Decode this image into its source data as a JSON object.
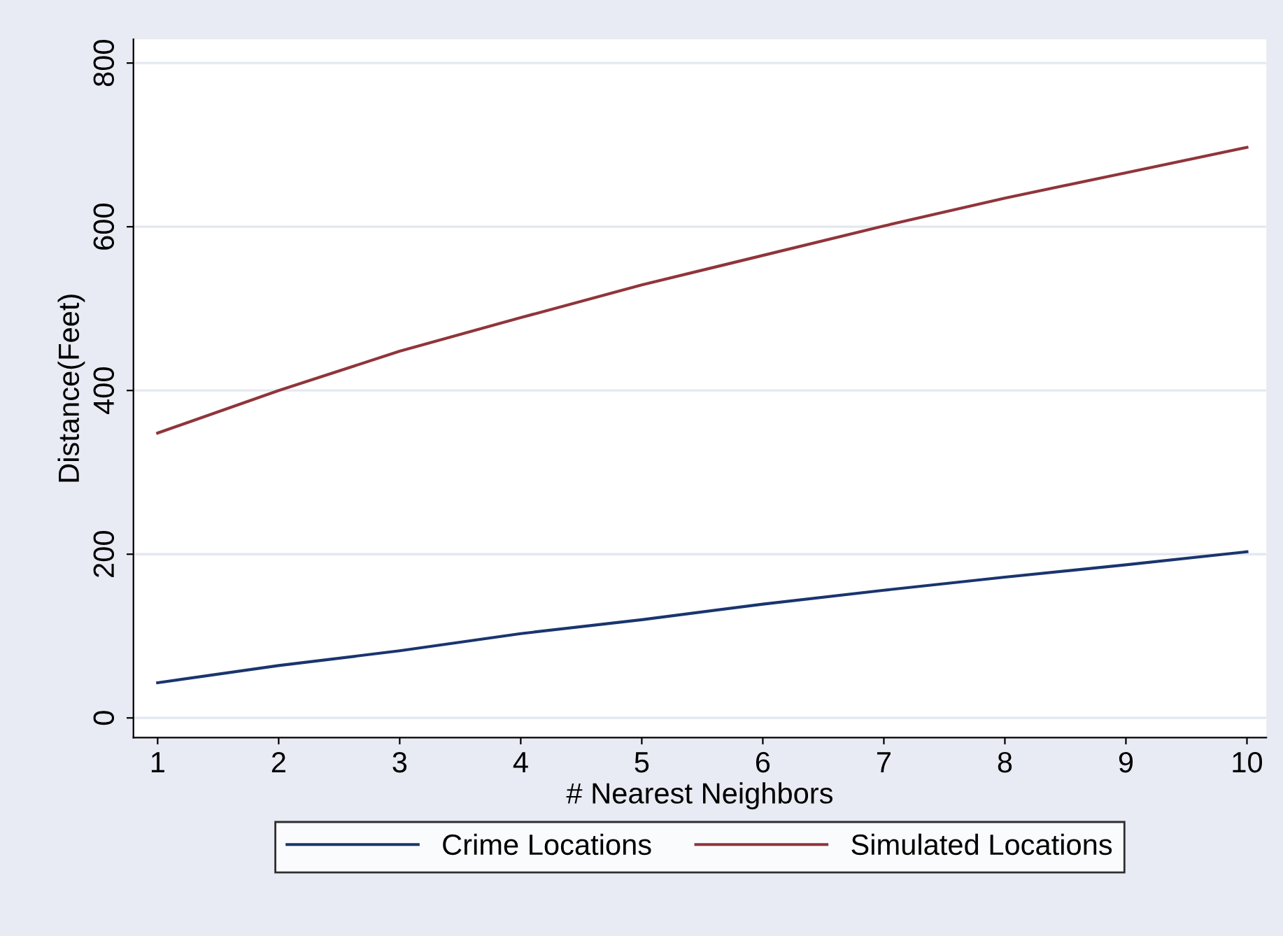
{
  "chart_data": {
    "type": "line",
    "xlabel": "# Nearest Neighbors",
    "ylabel": "Distance(Feet)",
    "x": [
      1,
      2,
      3,
      4,
      5,
      6,
      7,
      8,
      9,
      10
    ],
    "series": [
      {
        "name": "Crime Locations",
        "color": "#1a356e",
        "values": [
          43,
          64,
          82,
          103,
          120,
          139,
          156,
          172,
          187,
          203
        ]
      },
      {
        "name": "Simulated Locations",
        "color": "#90353b",
        "values": [
          348,
          400,
          448,
          489,
          529,
          565,
          601,
          635,
          666,
          697
        ]
      }
    ],
    "xlim": [
      0.8,
      10.16
    ],
    "ylim": [
      -24,
      829
    ],
    "xticks": [
      1,
      2,
      3,
      4,
      5,
      6,
      7,
      8,
      9,
      10
    ],
    "yticks": [
      0,
      200,
      400,
      600,
      800
    ],
    "grid": "y",
    "legend": "bottom",
    "marker": "none",
    "line_style": "solid"
  }
}
